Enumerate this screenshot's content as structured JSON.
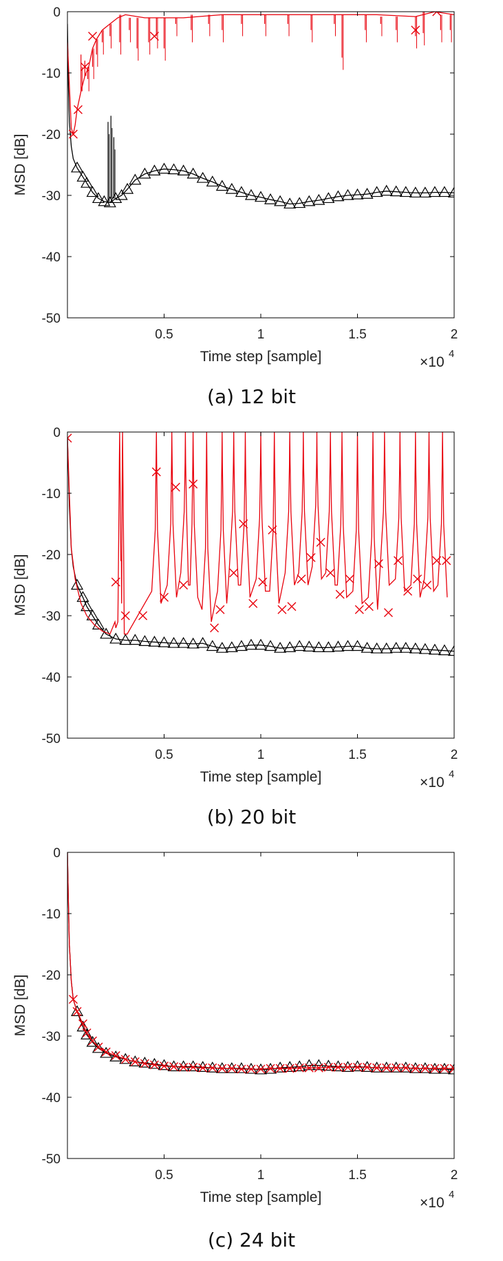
{
  "colors": {
    "proposed": "#000000",
    "conventional": "#e8000b",
    "axis": "#000000"
  },
  "chart_data": [
    {
      "type": "line",
      "caption": "(a) 12 bit",
      "xlabel": "Time step [sample]",
      "ylabel": "MSD [dB]",
      "x_multiplier": "×10",
      "x_exponent": "4",
      "xlim": [
        0,
        20000
      ],
      "ylim": [
        -50,
        0
      ],
      "xticks": [
        5000,
        10000,
        15000,
        20000
      ],
      "xtick_labels": [
        "0.5",
        "1",
        "1.5",
        "2"
      ],
      "yticks": [
        0,
        -10,
        -20,
        -30,
        -40,
        -50
      ],
      "ytick_labels": [
        "0",
        "-10",
        "-20",
        "-30",
        "-40",
        "-50"
      ],
      "grid": false,
      "series": [
        {
          "color": "#000000",
          "marker": "triangle",
          "x": [
            0,
            50,
            100,
            200,
            300,
            500,
            800,
            1000,
            1300,
            1600,
            1900,
            2200,
            2500,
            2800,
            3100,
            3500,
            4000,
            4500,
            5000,
            5500,
            6000,
            6500,
            7000,
            7500,
            8000,
            8500,
            9000,
            9500,
            10000,
            10500,
            11000,
            11500,
            12000,
            12500,
            13000,
            13500,
            14000,
            14500,
            15000,
            15500,
            16000,
            16500,
            17000,
            17500,
            18000,
            18500,
            19000,
            19500,
            20000
          ],
          "y": [
            -2,
            -12,
            -18,
            -22,
            -24,
            -25.5,
            -27,
            -28,
            -29.5,
            -30.5,
            -31,
            -31.2,
            -30.5,
            -30,
            -29,
            -27.5,
            -26.5,
            -26,
            -25.7,
            -25.8,
            -26,
            -26.5,
            -27.2,
            -27.8,
            -28.5,
            -29,
            -29.5,
            -30,
            -30.3,
            -30.7,
            -31,
            -31.4,
            -31.3,
            -31,
            -30.8,
            -30.5,
            -30.2,
            -30,
            -29.9,
            -29.8,
            -29.5,
            -29.3,
            -29.4,
            -29.5,
            -29.6,
            -29.6,
            -29.5,
            -29.5,
            -29.6
          ],
          "spikes": [
            [
              2100,
              -18
            ],
            [
              2250,
              -17
            ],
            [
              2400,
              -20.5
            ]
          ]
        },
        {
          "color": "#e8000b",
          "marker": "x",
          "x": [
            0,
            100,
            200,
            300,
            400,
            500,
            700,
            900,
            1100,
            1300,
            1500,
            1800,
            2200,
            2600,
            3000,
            4000,
            5000,
            6000,
            8000,
            10000,
            12000,
            14000,
            16000,
            18000,
            19000,
            20000
          ],
          "y": [
            -5,
            -12,
            -19,
            -20,
            -18.5,
            -16,
            -13,
            -10.5,
            -9,
            -6,
            -4.5,
            -3,
            -2,
            -1,
            -0.5,
            -1,
            -1,
            -1,
            -0.5,
            -0.5,
            -0.5,
            -0.5,
            -0.5,
            -0.8,
            0,
            -0.5
          ],
          "spikes": [
            [
              700,
              -7
            ],
            [
              900,
              -8
            ],
            [
              1050,
              -11
            ],
            [
              1300,
              -9
            ],
            [
              1500,
              -7
            ],
            [
              1800,
              -5
            ],
            [
              2200,
              -4
            ],
            [
              2700,
              -5
            ],
            [
              3200,
              -3
            ],
            [
              3600,
              -6
            ],
            [
              4200,
              -5
            ],
            [
              4600,
              -4
            ],
            [
              5000,
              -6
            ],
            [
              5600,
              -2
            ],
            [
              6400,
              -3
            ],
            [
              7300,
              -2
            ],
            [
              8000,
              -3
            ],
            [
              9000,
              -2
            ],
            [
              10200,
              -2
            ],
            [
              11400,
              -2
            ],
            [
              12600,
              -3
            ],
            [
              13800,
              -2
            ],
            [
              14200,
              -7.5
            ],
            [
              15400,
              -3
            ],
            [
              16200,
              -2
            ],
            [
              17000,
              -3
            ],
            [
              18000,
              -4
            ],
            [
              18400,
              -3.5
            ],
            [
              19300,
              -3
            ],
            [
              19800,
              -3
            ]
          ],
          "markers_x": [
            300,
            550,
            900,
            1300,
            4500,
            18000,
            19100
          ],
          "markers_y": [
            -20,
            -16,
            -9,
            -4,
            -4,
            -3,
            0
          ]
        }
      ]
    },
    {
      "type": "line",
      "caption": "(b) 20 bit",
      "xlabel": "Time step [sample]",
      "ylabel": "MSD [dB]",
      "x_multiplier": "×10",
      "x_exponent": "4",
      "xlim": [
        0,
        20000
      ],
      "ylim": [
        -50,
        0
      ],
      "xticks": [
        5000,
        10000,
        15000,
        20000
      ],
      "xtick_labels": [
        "0.5",
        "1",
        "1.5",
        "2"
      ],
      "yticks": [
        0,
        -10,
        -20,
        -30,
        -40,
        -50
      ],
      "ytick_labels": [
        "0",
        "-10",
        "-20",
        "-30",
        "-40",
        "-50"
      ],
      "grid": false,
      "series": [
        {
          "color": "#000000",
          "marker": "triangle",
          "x": [
            0,
            100,
            200,
            300,
            500,
            800,
            1000,
            1300,
            1600,
            2000,
            2500,
            3000,
            3500,
            4000,
            4500,
            5000,
            5500,
            6000,
            6500,
            7000,
            7500,
            8000,
            8500,
            9000,
            9500,
            10000,
            10500,
            11000,
            11500,
            12000,
            12500,
            13000,
            13500,
            14000,
            14500,
            15000,
            15500,
            16000,
            16500,
            17000,
            17500,
            18000,
            18500,
            19000,
            19500,
            20000
          ],
          "y": [
            -1,
            -12,
            -19,
            -22,
            -25,
            -27,
            -28.5,
            -30,
            -31.5,
            -33,
            -33.8,
            -34,
            -34,
            -34.2,
            -34.3,
            -34.4,
            -34.5,
            -34.5,
            -34.6,
            -34.5,
            -35,
            -35.3,
            -35.2,
            -35,
            -34.8,
            -34.8,
            -35,
            -35.3,
            -35.2,
            -35,
            -35.1,
            -35.2,
            -35.2,
            -35.1,
            -35,
            -35,
            -35.3,
            -35.4,
            -35.4,
            -35.3,
            -35.3,
            -35.4,
            -35.5,
            -35.6,
            -35.7,
            -35.8
          ]
        },
        {
          "color": "#e8000b",
          "marker": "x",
          "x": [
            0,
            100,
            200,
            400,
            700,
            1000,
            1400,
            1800,
            2200,
            2500,
            2800
          ],
          "y": [
            -1,
            -10,
            -19,
            -24,
            -28,
            -30,
            -31.5,
            -32.5,
            -33,
            -32,
            -28
          ],
          "peaks": [
            2700,
            2850,
            4600,
            5400,
            6100,
            6500,
            7200,
            8000,
            8600,
            9200,
            10000,
            10700,
            11500,
            12200,
            12900,
            13600,
            14200,
            15000,
            15800,
            16400,
            17200,
            18000,
            18700,
            19400
          ],
          "troughs": [
            -33,
            -33,
            -28,
            -27,
            -25,
            -27,
            -31,
            -28,
            -25,
            -27,
            -26,
            -28,
            -25,
            -25,
            -24,
            -25,
            -27,
            -28,
            -29,
            -25,
            -26,
            -27,
            -26,
            -27
          ],
          "markers_x": [
            0,
            2500,
            3000,
            3900,
            4600,
            5000,
            5600,
            6000,
            6500,
            7600,
            7900,
            8600,
            9100,
            9600,
            10100,
            10600,
            11100,
            11600,
            12100,
            12600,
            13100,
            13600,
            14100,
            14600,
            15100,
            15600,
            16100,
            16600,
            17100,
            17600,
            18100,
            18600,
            19100,
            19600
          ],
          "markers_y": [
            -1,
            -24.5,
            -30,
            -30,
            -6.5,
            -27,
            -9,
            -25,
            -8.5,
            -32,
            -29,
            -23,
            -15,
            -28,
            -24.5,
            -16,
            -29,
            -28.5,
            -24,
            -20.5,
            -18,
            -23,
            -26.5,
            -24,
            -29,
            -28.5,
            -21.5,
            -29.5,
            -21,
            -26,
            -24,
            -25,
            -21,
            -21
          ]
        }
      ]
    },
    {
      "type": "line",
      "caption": "(c) 24 bit",
      "xlabel": "Time step [sample]",
      "ylabel": "MSD [dB]",
      "x_multiplier": "×10",
      "x_exponent": "4",
      "xlim": [
        0,
        20000
      ],
      "ylim": [
        -50,
        0
      ],
      "xticks": [
        5000,
        10000,
        15000,
        20000
      ],
      "xtick_labels": [
        "0.5",
        "1",
        "1.5",
        "2"
      ],
      "yticks": [
        0,
        -10,
        -20,
        -30,
        -40,
        -50
      ],
      "ytick_labels": [
        "0",
        "-10",
        "-20",
        "-30",
        "-40",
        "-50"
      ],
      "grid": false,
      "series": [
        {
          "color": "#000000",
          "marker": "triangle",
          "x": [
            0,
            50,
            100,
            200,
            300,
            500,
            800,
            1000,
            1300,
            1600,
            2000,
            2500,
            3000,
            3500,
            4000,
            4500,
            5000,
            5500,
            6000,
            6500,
            7000,
            7500,
            8000,
            8500,
            9000,
            9500,
            10000,
            10500,
            11000,
            11500,
            12000,
            12500,
            13000,
            13500,
            14000,
            14500,
            15000,
            15500,
            16000,
            16500,
            17000,
            17500,
            18000,
            18500,
            19000,
            19500,
            20000
          ],
          "y": [
            0,
            -8,
            -15,
            -21,
            -24,
            -26,
            -28.5,
            -29.8,
            -31,
            -32,
            -32.8,
            -33.4,
            -33.8,
            -34.2,
            -34.4,
            -34.6,
            -34.8,
            -35,
            -35,
            -35,
            -35.1,
            -35.2,
            -35.3,
            -35.3,
            -35.3,
            -35.4,
            -35.5,
            -35.4,
            -35.2,
            -35.1,
            -35,
            -34.8,
            -34.8,
            -34.9,
            -35,
            -35.1,
            -35,
            -35.1,
            -35.2,
            -35.2,
            -35.2,
            -35.2,
            -35.3,
            -35.3,
            -35.4,
            -35.4,
            -35.5
          ]
        },
        {
          "color": "#e8000b",
          "marker": "x",
          "x": [
            0,
            50,
            100,
            200,
            300,
            500,
            800,
            1000,
            1300,
            1600,
            2000,
            2500,
            3000,
            3500,
            4000,
            4500,
            5000,
            5500,
            6000,
            6500,
            7000,
            7500,
            8000,
            8500,
            9000,
            9500,
            10000,
            10500,
            11000,
            11500,
            12000,
            12500,
            13000,
            13500,
            14000,
            14500,
            15000,
            15500,
            16000,
            16500,
            17000,
            17500,
            18000,
            18500,
            19000,
            19500,
            20000
          ],
          "y": [
            0,
            -8,
            -15,
            -21,
            -24,
            -26,
            -28,
            -29.5,
            -30.8,
            -31.8,
            -32.6,
            -33.2,
            -33.8,
            -34.2,
            -34.5,
            -34.7,
            -34.9,
            -35,
            -35.1,
            -35.1,
            -35.2,
            -35.2,
            -35.3,
            -35.3,
            -35.4,
            -35.4,
            -35.4,
            -35.3,
            -35.3,
            -35.3,
            -35.2,
            -35.2,
            -35.2,
            -35.1,
            -35.1,
            -35.1,
            -35.1,
            -35.1,
            -35.2,
            -35.2,
            -35.2,
            -35.2,
            -35.3,
            -35.3,
            -35.3,
            -35.3,
            -35.3
          ]
        }
      ]
    }
  ]
}
